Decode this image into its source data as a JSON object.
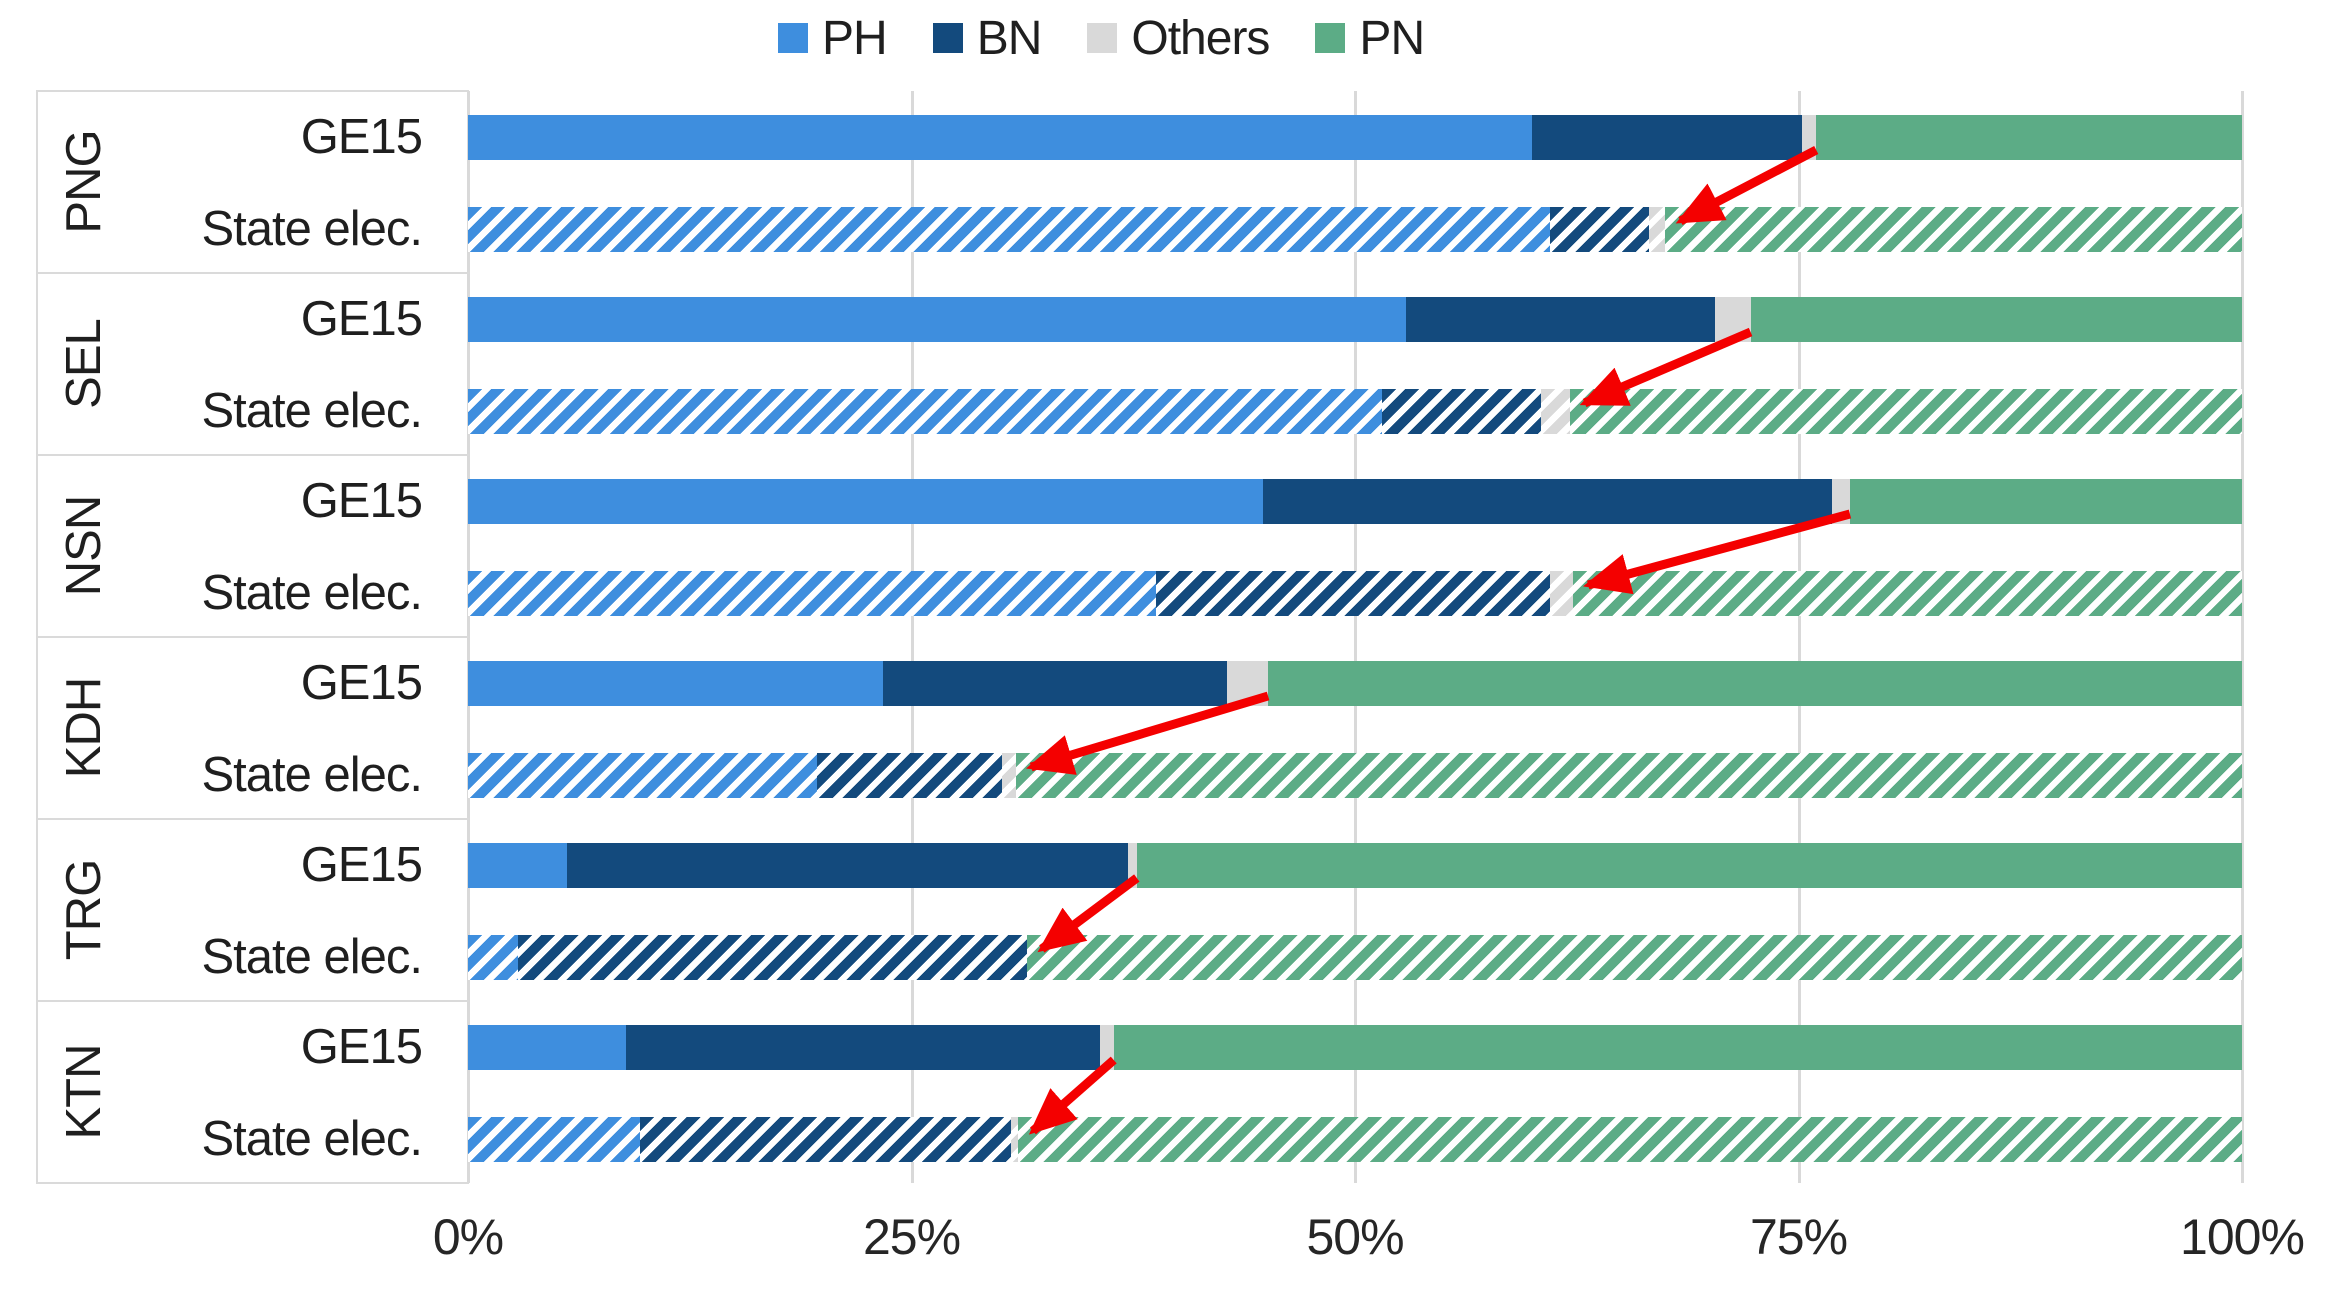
{
  "chart_data": {
    "type": "bar",
    "orientation": "horizontal",
    "stacked": true,
    "unit": "percent of vote",
    "title": "",
    "legend": {
      "position": "top",
      "entries": [
        {
          "label": "PH",
          "color": "#3E8EDE"
        },
        {
          "label": "BN",
          "color": "#134A7D"
        },
        {
          "label": "Others",
          "color": "#D9D9D9"
        },
        {
          "label": "PN",
          "color": "#5CAC86"
        }
      ]
    },
    "x_axis": {
      "min": 0,
      "max": 100,
      "ticks": [
        "0%",
        "25%",
        "50%",
        "75%",
        "100%"
      ],
      "grid": true
    },
    "row_labels": [
      "GE15",
      "State elec."
    ],
    "categories": [
      "PH",
      "BN",
      "Others",
      "PN"
    ],
    "groups": [
      {
        "state": "PNG",
        "rows": [
          {
            "label": "GE15",
            "style": "solid",
            "values": [
              60.0,
              15.2,
              0.8,
              24.0
            ]
          },
          {
            "label": "State elec.",
            "style": "hatched",
            "values": [
              61.0,
              5.6,
              0.9,
              32.5
            ]
          }
        ],
        "arrow": {
          "from_pct": 76.0,
          "to_pct": 67.5
        }
      },
      {
        "state": "SEL",
        "rows": [
          {
            "label": "GE15",
            "style": "solid",
            "values": [
              52.9,
              17.4,
              2.0,
              27.7
            ]
          },
          {
            "label": "State elec.",
            "style": "hatched",
            "values": [
              51.5,
              9.0,
              1.6,
              37.9
            ]
          }
        ],
        "arrow": {
          "from_pct": 72.3,
          "to_pct": 62.1
        }
      },
      {
        "state": "NSN",
        "rows": [
          {
            "label": "GE15",
            "style": "solid",
            "values": [
              44.8,
              32.1,
              1.0,
              22.1
            ]
          },
          {
            "label": "State elec.",
            "style": "hatched",
            "values": [
              38.8,
              22.2,
              1.3,
              37.7
            ]
          }
        ],
        "arrow": {
          "from_pct": 77.9,
          "to_pct": 62.3
        }
      },
      {
        "state": "KDH",
        "rows": [
          {
            "label": "GE15",
            "style": "solid",
            "values": [
              23.4,
              19.4,
              2.3,
              54.9
            ]
          },
          {
            "label": "State elec.",
            "style": "hatched",
            "values": [
              19.7,
              10.4,
              0.8,
              69.1
            ]
          }
        ],
        "arrow": {
          "from_pct": 45.1,
          "to_pct": 30.9
        }
      },
      {
        "state": "TRG",
        "rows": [
          {
            "label": "GE15",
            "style": "solid",
            "values": [
              5.6,
              31.6,
              0.5,
              62.3
            ]
          },
          {
            "label": "State elec.",
            "style": "hatched",
            "values": [
              2.8,
              28.7,
              0.0,
              68.5
            ]
          }
        ],
        "arrow": {
          "from_pct": 37.7,
          "to_pct": 31.5
        }
      },
      {
        "state": "KTN",
        "rows": [
          {
            "label": "GE15",
            "style": "solid",
            "values": [
              8.9,
              26.7,
              0.8,
              63.6
            ]
          },
          {
            "label": "State elec.",
            "style": "hatched",
            "values": [
              9.7,
              20.9,
              0.4,
              69.0
            ]
          }
        ],
        "arrow": {
          "from_pct": 36.4,
          "to_pct": 31.0
        }
      }
    ],
    "annotations": [
      {
        "type": "arrow",
        "color": "#F40000",
        "meaning": "red arrow links end of PH+BN+Others stack in GE15 row to its position in the state election row of each state"
      }
    ]
  }
}
